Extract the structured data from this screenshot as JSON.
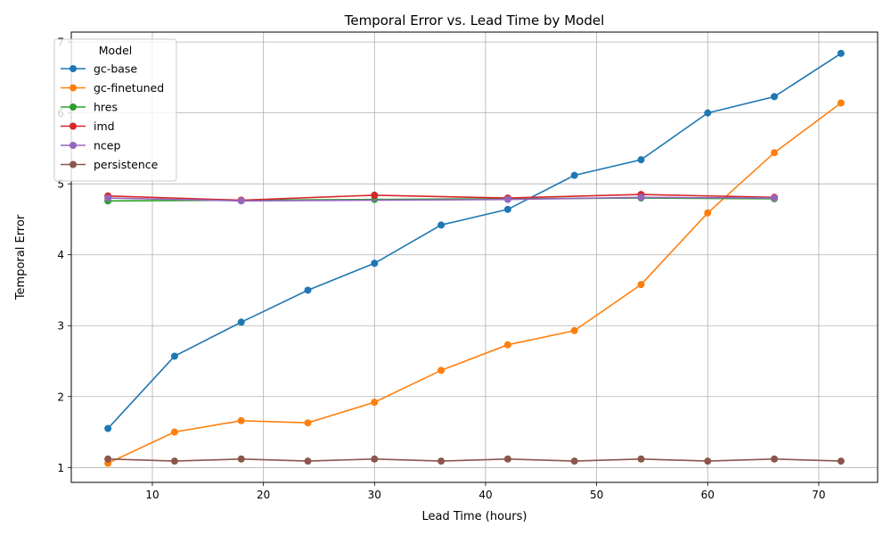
{
  "chart_data": {
    "type": "line",
    "title": "Temporal Error vs. Lead Time by Model",
    "xlabel": "Lead Time (hours)",
    "ylabel": "Temporal Error",
    "xlim": [
      2.7,
      75.3
    ],
    "ylim": [
      0.79,
      7.14
    ],
    "xticks": [
      10,
      20,
      30,
      40,
      50,
      60,
      70
    ],
    "yticks": [
      1,
      2,
      3,
      4,
      5,
      6,
      7
    ],
    "grid": true,
    "legend": {
      "title": "Model",
      "position": "top-left"
    },
    "series": [
      {
        "name": "gc-base",
        "color": "#1f77b4",
        "x": [
          6,
          12,
          18,
          24,
          30,
          36,
          42,
          48,
          54,
          60,
          66,
          72
        ],
        "y": [
          1.55,
          2.57,
          3.05,
          3.5,
          3.88,
          4.42,
          4.64,
          5.12,
          5.34,
          6.0,
          6.23,
          6.84
        ]
      },
      {
        "name": "gc-finetuned",
        "color": "#ff7f0e",
        "x": [
          6,
          12,
          18,
          24,
          30,
          36,
          42,
          48,
          54,
          60,
          66,
          72
        ],
        "y": [
          1.06,
          1.5,
          1.66,
          1.63,
          1.92,
          2.37,
          2.73,
          2.93,
          3.58,
          4.59,
          5.44,
          6.14
        ]
      },
      {
        "name": "hres",
        "color": "#2ca02c",
        "x": [
          6,
          30,
          54,
          66
        ],
        "y": [
          4.76,
          4.78,
          4.8,
          4.79
        ]
      },
      {
        "name": "imd",
        "color": "#d62728",
        "x": [
          6,
          18,
          30,
          42,
          54,
          66
        ],
        "y": [
          4.83,
          4.77,
          4.84,
          4.8,
          4.85,
          4.81
        ]
      },
      {
        "name": "ncep",
        "color": "#9467bd",
        "x": [
          6,
          18,
          42,
          54,
          66
        ],
        "y": [
          4.8,
          4.76,
          4.78,
          4.81,
          4.8
        ]
      },
      {
        "name": "persistence",
        "color": "#8c564b",
        "x": [
          6,
          12,
          18,
          24,
          30,
          36,
          42,
          48,
          54,
          60,
          66,
          72
        ],
        "y": [
          1.12,
          1.09,
          1.12,
          1.09,
          1.12,
          1.09,
          1.12,
          1.09,
          1.12,
          1.09,
          1.12,
          1.09
        ]
      }
    ]
  }
}
